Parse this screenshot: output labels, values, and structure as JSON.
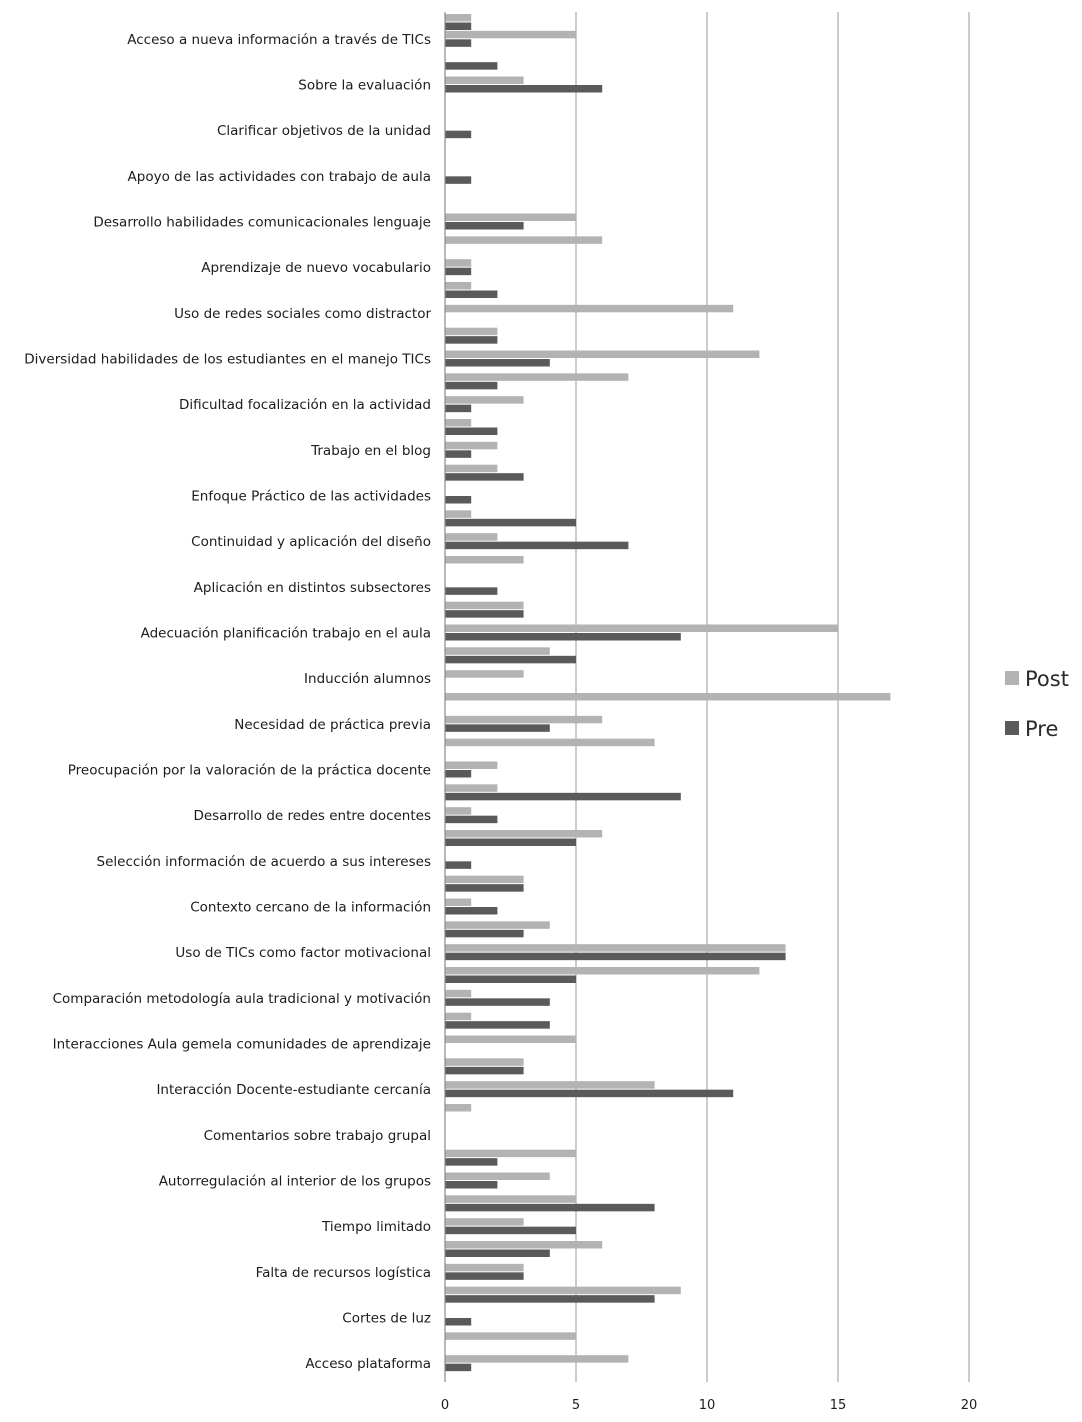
{
  "chart_data": {
    "type": "bar",
    "orientation": "horizontal",
    "title": "",
    "xlabel": "",
    "ylabel": "",
    "xlim": [
      0,
      20
    ],
    "xticks": [
      0,
      5,
      10,
      15,
      20
    ],
    "grid": true,
    "legend_position": "right",
    "colors": {
      "Post": "#b3b3b3",
      "Pre": "#5a5a5a"
    },
    "categories": [
      "Acceso a nueva información a través de TICs",
      "Sobre la evaluación",
      "Clarificar objetivos de la unidad",
      "Apoyo de las actividades con trabajo de aula",
      "Desarrollo habilidades comunicacionales lenguaje",
      "Aprendizaje de nuevo vocabulario",
      "Uso de redes sociales como distractor",
      "Diversidad habilidades de los estudiantes en el manejo TICs",
      "Dificultad focalización en la actividad",
      "Trabajo en el blog",
      "Enfoque Práctico de las actividades",
      "Continuidad y aplicación del diseño",
      "Aplicación en distintos subsectores",
      "Adecuación planificación trabajo en el aula",
      "Inducción alumnos",
      "Necesidad de práctica previa",
      "Preocupación por la valoración de la práctica docente",
      "Desarrollo de redes entre docentes",
      "Selección información de acuerdo a sus intereses",
      "Contexto cercano de la información",
      "Uso de TICs como factor motivacional",
      "Comparación metodología aula tradicional y motivación",
      "Interacciones Aula gemela comunidades de aprendizaje",
      "Interacción Docente-estudiante cercanía",
      "Comentarios sobre trabajo grupal",
      "Autorregulación al interior de los grupos",
      "Tiempo limitado",
      "Falta de recursos logística",
      "Cortes de luz",
      "Acceso plataforma"
    ],
    "unlabeled_rows": [
      {
        "after": "Acceso a nueva información a través de TICs",
        "pre": 2,
        "post": 0
      },
      {
        "after": "Desarrollo habilidades comunicacionales lenguaje",
        "pre": 0,
        "post": 6
      },
      {
        "after": "Aprendizaje de nuevo vocabulario",
        "pre": 2,
        "post": 1
      },
      {
        "after": "Uso de redes sociales como distractor",
        "pre": 2,
        "post": 2
      },
      {
        "after": "Diversidad habilidades de los estudiantes en el manejo TICs",
        "pre": 2,
        "post": 7
      },
      {
        "after": "Dificultad focalización en la actividad",
        "pre": 2,
        "post": 1
      },
      {
        "after": "Trabajo en el blog",
        "pre": 3,
        "post": 2
      },
      {
        "after": "Enfoque Práctico de las actividades",
        "pre": 5,
        "post": 1
      },
      {
        "after": "Continuidad y aplicación del diseño",
        "pre": 0,
        "post": 3
      },
      {
        "after": "Aplicación en distintos subsectores",
        "pre": 3,
        "post": 3
      },
      {
        "after": "Adecuación planificación trabajo en el aula",
        "pre": 5,
        "post": 4
      },
      {
        "after": "Inducción alumnos",
        "pre": 0,
        "post": 17
      },
      {
        "after": "Necesidad de práctica previa",
        "pre": 0,
        "post": 8
      },
      {
        "after": "Preocupación por la valoración de la práctica docente",
        "pre": 9,
        "post": 2
      },
      {
        "after": "Desarrollo de redes entre docentes",
        "pre": 5,
        "post": 6
      },
      {
        "after": "Selección información de acuerdo a sus intereses",
        "pre": 3,
        "post": 3
      },
      {
        "after": "Contexto cercano de la información",
        "pre": 3,
        "post": 4
      },
      {
        "after": "Uso de TICs como factor motivacional",
        "pre": 5,
        "post": 12
      },
      {
        "after": "Comparación metodología aula tradicional y motivación",
        "pre": 4,
        "post": 1
      },
      {
        "after": "Interacciones Aula gemela comunidades de aprendizaje",
        "pre": 3,
        "post": 3
      },
      {
        "after": "Interacción Docente-estudiante cercanía",
        "pre": 0,
        "post": 1
      },
      {
        "after": "Comentarios sobre trabajo grupal",
        "pre": 2,
        "post": 5
      },
      {
        "after": "Autorregulación al interior de los grupos",
        "pre": 8,
        "post": 5
      },
      {
        "after": "Tiempo limitado",
        "pre": 4,
        "post": 6
      },
      {
        "after": "Falta de recursos logística",
        "pre": 8,
        "post": 9
      },
      {
        "after": "Cortes de luz",
        "pre": 0,
        "post": 5
      }
    ],
    "series": [
      {
        "name": "Post",
        "values": [
          5,
          3,
          0,
          0,
          5,
          1,
          11,
          12,
          3,
          2,
          0,
          2,
          0,
          15,
          3,
          6,
          2,
          1,
          0,
          1,
          13,
          1,
          5,
          8,
          0,
          4,
          3,
          3,
          0,
          7
        ]
      },
      {
        "name": "Pre",
        "values": [
          1,
          6,
          1,
          1,
          3,
          1,
          0,
          4,
          1,
          1,
          1,
          7,
          2,
          9,
          0,
          4,
          1,
          2,
          1,
          2,
          13,
          4,
          0,
          11,
          0,
          2,
          5,
          3,
          1,
          1
        ]
      }
    ],
    "leading_rows": [
      {
        "pre": 1,
        "post": 1
      }
    ]
  }
}
